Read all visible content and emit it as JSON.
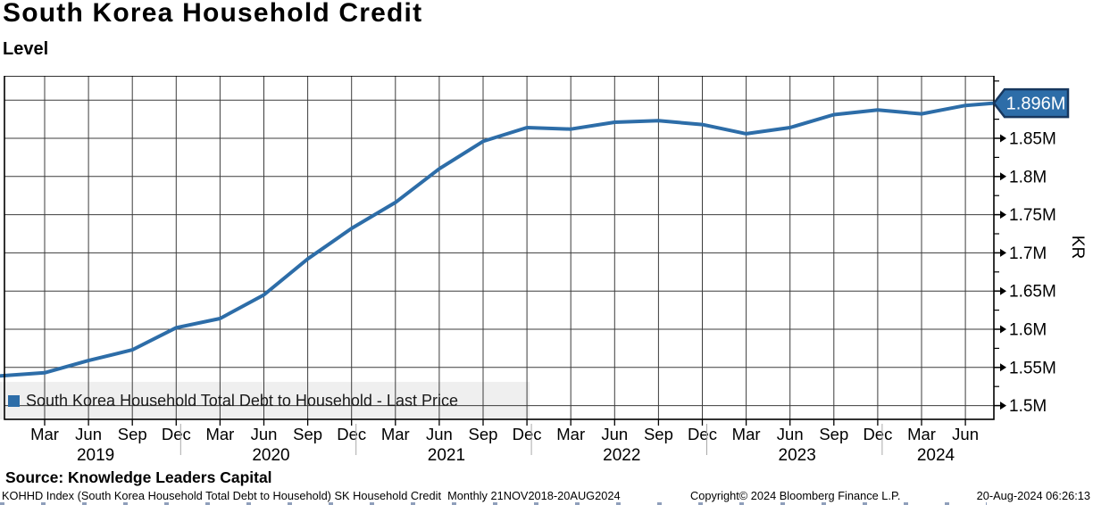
{
  "header": {
    "title": "South Korea Household Credit",
    "subtitle": "Level"
  },
  "legend": {
    "label": "South Korea Household Total Debt to Household - Last Price",
    "marker_color": "#2d6da8"
  },
  "chart_data": {
    "type": "line",
    "title": "South Korea Household Credit",
    "xlabel": "",
    "ylabel": "KR",
    "ylim": [
      1.48,
      1.93
    ],
    "grid": true,
    "legend_position": "bottom-left",
    "last_price_label": "1.896M",
    "last_price_value": 1.896,
    "colors": {
      "line": "#2d6da8",
      "flag_fill": "#2d6da8",
      "flag_border": "#17375e",
      "grid": "#3c3c3c",
      "legend_bg": "#efefef"
    },
    "series": [
      {
        "name": "South Korea Household Total Debt to Household - Last Price",
        "color": "#2d6da8",
        "x": [
          "Dec 2018",
          "Mar 2019",
          "Jun 2019",
          "Sep 2019",
          "Dec 2019",
          "Mar 2020",
          "Jun 2020",
          "Sep 2020",
          "Dec 2020",
          "Mar 2021",
          "Jun 2021",
          "Sep 2021",
          "Dec 2021",
          "Mar 2022",
          "Jun 2022",
          "Sep 2022",
          "Dec 2022",
          "Mar 2023",
          "Jun 2023",
          "Sep 2023",
          "Dec 2023",
          "Mar 2024",
          "Jun 2024",
          "Aug 2024"
        ],
        "x_index": [
          0,
          1,
          2,
          3,
          4,
          5,
          6,
          7,
          8,
          9,
          10,
          11,
          12,
          13,
          14,
          15,
          16,
          17,
          18,
          19,
          20,
          21,
          22,
          22.65
        ],
        "values": [
          1.539,
          1.543,
          1.559,
          1.573,
          1.602,
          1.614,
          1.645,
          1.692,
          1.732,
          1.766,
          1.81,
          1.846,
          1.864,
          1.862,
          1.871,
          1.873,
          1.868,
          1.856,
          1.864,
          1.881,
          1.887,
          1.882,
          1.893,
          1.896
        ]
      }
    ],
    "y_axis": {
      "label": "KR",
      "major_ticks": [
        {
          "value": 1.85,
          "label": "1.85M"
        },
        {
          "value": 1.8,
          "label": "1.8M"
        },
        {
          "value": 1.75,
          "label": "1.75M"
        },
        {
          "value": 1.7,
          "label": "1.7M"
        },
        {
          "value": 1.65,
          "label": "1.65M"
        },
        {
          "value": 1.6,
          "label": "1.6M"
        },
        {
          "value": 1.55,
          "label": "1.55M"
        },
        {
          "value": 1.5,
          "label": "1.5M"
        }
      ]
    },
    "x_axis": {
      "quarter_labels": [
        "Mar",
        "Jun",
        "Sep",
        "Dec",
        "Mar",
        "Jun",
        "Sep",
        "Dec",
        "Mar",
        "Jun",
        "Sep",
        "Dec",
        "Mar",
        "Jun",
        "Sep",
        "Dec",
        "Mar",
        "Jun",
        "Sep",
        "Dec",
        "Mar",
        "Jun"
      ],
      "year_labels": [
        "2019",
        "2020",
        "2021",
        "2022",
        "2023",
        "2024"
      ]
    }
  },
  "source": {
    "text": "Source: Knowledge Leaders Capital"
  },
  "footer": {
    "left": "KOHHD Index (South Korea Household Total Debt to Household) SK Household Credit  Monthly 21NOV2018-20AUG2024",
    "center": "Copyright© 2024 Bloomberg Finance L.P.",
    "right": "20-Aug-2024 06:26:13"
  }
}
